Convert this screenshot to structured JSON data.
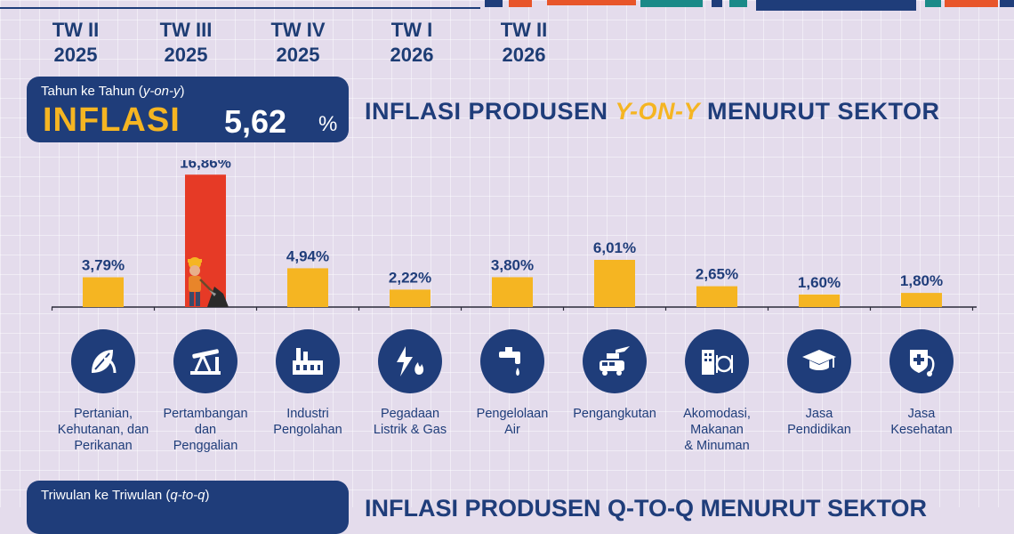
{
  "quarters": [
    {
      "tw": "TW II",
      "year": "2025"
    },
    {
      "tw": "TW III",
      "year": "2025"
    },
    {
      "tw": "TW IV",
      "year": "2025"
    },
    {
      "tw": "TW I",
      "year": "2026"
    },
    {
      "tw": "TW II",
      "year": "2026"
    }
  ],
  "yoy_badge": {
    "subtitle_a": "Tahun ke Tahun (",
    "subtitle_em": "y-on-y",
    "subtitle_b": ")",
    "label": "INFLASI",
    "value": "5,62",
    "unit": "%"
  },
  "yoy_title": {
    "a": "INFLASI PRODUSEN ",
    "hl": "Y-ON-Y",
    "b": " MENURUT SEKTOR"
  },
  "qoq_badge": {
    "subtitle_a": "Triwulan ke Triwulan (",
    "subtitle_em": "q-to-q",
    "subtitle_b": ")"
  },
  "qoq_title": "INFLASI PRODUSEN Q-TO-Q MENURUT SEKTOR",
  "colors": {
    "bar": "#f5b522",
    "bar_highlight": "#e63a26",
    "navy": "#1f3d7a",
    "axis": "#2b2b3a"
  },
  "chart_data": {
    "type": "bar",
    "categories": [
      "Pertanian,\nKehutanan, dan\nPerikanan",
      "Pertambangan\ndan\nPenggalian",
      "Industri\nPengolahan",
      "Pegadaan\nListrik & Gas",
      "Pengelolaan\nAir",
      "Pengangkutan",
      "Akomodasi,\nMakanan\n& Minuman",
      "Jasa\nPendidikan",
      "Jasa\nKesehatan"
    ],
    "values": [
      3.79,
      16.86,
      4.94,
      2.22,
      3.8,
      6.01,
      2.65,
      1.6,
      1.8
    ],
    "value_labels": [
      "3,79%",
      "16,86%",
      "4,94%",
      "2,22%",
      "3,80%",
      "6,01%",
      "2,65%",
      "1,60%",
      "1,80%"
    ],
    "highlight_index": 1,
    "icons": [
      "leaf-icon",
      "oil-pump-icon",
      "factory-icon",
      "electricity-gas-icon",
      "water-tap-icon",
      "transport-icon",
      "hotel-dining-icon",
      "graduation-cap-icon",
      "health-icon"
    ],
    "ylim": [
      0,
      17
    ]
  }
}
